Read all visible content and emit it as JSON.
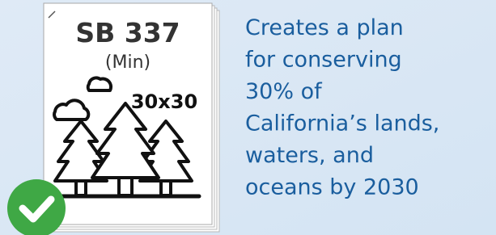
{
  "card": {
    "bill": "SB 337",
    "author": "(Min)",
    "badge": "30x30"
  },
  "description": [
    "Creates a plan",
    "for conserving",
    "30% of",
    "California’s lands,",
    "waters, and",
    "oceans by 2030"
  ]
}
